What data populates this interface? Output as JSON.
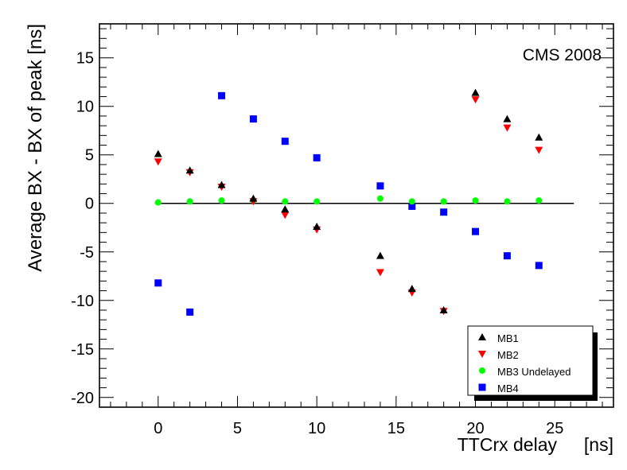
{
  "chart_data": {
    "type": "scatter",
    "title": "",
    "annotation": "CMS 2008",
    "xlabel": "TTCrx delay",
    "xunit": "[ns]",
    "ylabel": "Average BX - BX of peak [ns]",
    "xlim": [
      -3.7,
      28.7
    ],
    "ylim": [
      -21,
      18.5
    ],
    "xticks": [
      0,
      5,
      10,
      15,
      20,
      25
    ],
    "yticks": [
      -20,
      -15,
      -10,
      -5,
      0,
      5,
      10,
      15
    ],
    "reference_line": {
      "y": 0,
      "x_from": -0.2,
      "x_to": 26.2
    },
    "legend_position": "bottom-right",
    "series": [
      {
        "name": "MB1",
        "marker": "triangle-up",
        "color": "#000000",
        "x": [
          0,
          2,
          4,
          6,
          8,
          10,
          14,
          16,
          18,
          20,
          22,
          24
        ],
        "y": [
          5.1,
          3.4,
          1.9,
          0.5,
          -0.6,
          -2.4,
          -5.4,
          -8.8,
          -11.0,
          11.4,
          8.7,
          6.8
        ]
      },
      {
        "name": "MB2",
        "marker": "triangle-down",
        "color": "#ff0000",
        "x": [
          0,
          2,
          4,
          6,
          8,
          10,
          14,
          16,
          18,
          20,
          22,
          24
        ],
        "y": [
          4.3,
          3.2,
          1.7,
          0.2,
          -1.2,
          -2.7,
          -7.1,
          -9.2,
          -11.1,
          10.7,
          7.8,
          5.5
        ]
      },
      {
        "name": "MB3 Undelayed",
        "marker": "circle",
        "color": "#00ff00",
        "x": [
          0,
          2,
          4,
          6,
          8,
          10,
          14,
          16,
          18,
          20,
          22,
          24
        ],
        "y": [
          0.1,
          0.2,
          0.3,
          0.3,
          0.2,
          0.2,
          0.5,
          0.2,
          0.2,
          0.3,
          0.2,
          0.3
        ]
      },
      {
        "name": "MB4",
        "marker": "square",
        "color": "#0000ff",
        "x": [
          0,
          2,
          4,
          6,
          8,
          10,
          14,
          16,
          18,
          20,
          22,
          24
        ],
        "y": [
          -8.2,
          -11.2,
          11.1,
          8.7,
          6.4,
          4.7,
          1.8,
          -0.3,
          -0.9,
          -2.9,
          -5.4,
          -6.4
        ]
      }
    ]
  }
}
